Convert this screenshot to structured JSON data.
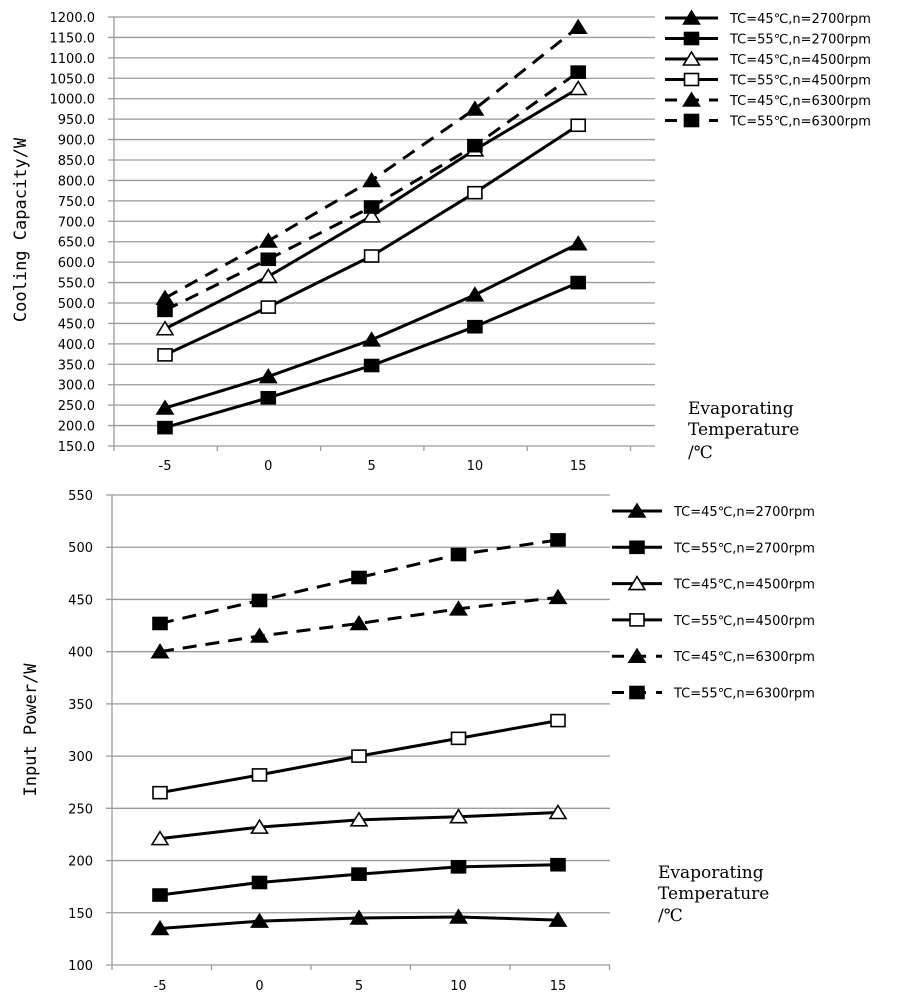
{
  "chart_data": [
    {
      "type": "line",
      "title": "",
      "ylabel": "Cooling Capacity/W",
      "xlabel_lines": [
        "Evaporating",
        "Temperature",
        "/℃"
      ],
      "categories": [
        "-5",
        "0",
        "5",
        "10",
        "15"
      ],
      "ylim": [
        150,
        1200
      ],
      "ytick_step": 50,
      "ytick_decimals": 1,
      "grid": true,
      "legend_position": "right",
      "series": [
        {
          "name": "TC=45℃,n=2700rpm",
          "marker": "filled-triangle",
          "dash": false,
          "values": [
            243,
            320,
            410,
            520,
            645
          ]
        },
        {
          "name": "TC=55℃,n=2700rpm",
          "marker": "filled-square",
          "dash": false,
          "values": [
            195,
            268,
            347,
            442,
            550
          ]
        },
        {
          "name": "TC=45℃,n=4500rpm",
          "marker": "open-triangle",
          "dash": false,
          "values": [
            437,
            565,
            713,
            875,
            1025
          ]
        },
        {
          "name": "TC=55℃,n=4500rpm",
          "marker": "open-square",
          "dash": false,
          "values": [
            373,
            490,
            615,
            770,
            935
          ]
        },
        {
          "name": "TC=45℃,n=6300rpm",
          "marker": "filled-triangle",
          "dash": true,
          "values": [
            512,
            652,
            800,
            975,
            1175
          ]
        },
        {
          "name": "TC=55℃,n=6300rpm",
          "marker": "filled-square",
          "dash": true,
          "values": [
            482,
            607,
            735,
            885,
            1065
          ]
        }
      ]
    },
    {
      "type": "line",
      "title": "",
      "ylabel": "Input Power/W",
      "xlabel_lines": [
        "Evaporating",
        "Temperature",
        "/℃"
      ],
      "categories": [
        "-5",
        "0",
        "5",
        "10",
        "15"
      ],
      "ylim": [
        100,
        550
      ],
      "ytick_step": 50,
      "ytick_decimals": 0,
      "grid": true,
      "legend_position": "right",
      "series": [
        {
          "name": "TC=45℃,n=2700rpm",
          "marker": "filled-triangle",
          "dash": false,
          "values": [
            135,
            142,
            145,
            146,
            143
          ]
        },
        {
          "name": "TC=55℃,n=2700rpm",
          "marker": "filled-square",
          "dash": false,
          "values": [
            167,
            179,
            187,
            194,
            196
          ]
        },
        {
          "name": "TC=45℃,n=4500rpm",
          "marker": "open-triangle",
          "dash": false,
          "values": [
            221,
            232,
            239,
            242,
            246
          ]
        },
        {
          "name": "TC=55℃,n=4500rpm",
          "marker": "open-square",
          "dash": false,
          "values": [
            265,
            282,
            300,
            317,
            334
          ]
        },
        {
          "name": "TC=45℃,n=6300rpm",
          "marker": "filled-triangle",
          "dash": true,
          "values": [
            400,
            415,
            427,
            441,
            452
          ]
        },
        {
          "name": "TC=55℃,n=6300rpm",
          "marker": "filled-square",
          "dash": true,
          "values": [
            427,
            449,
            471,
            493,
            507
          ]
        }
      ]
    }
  ]
}
